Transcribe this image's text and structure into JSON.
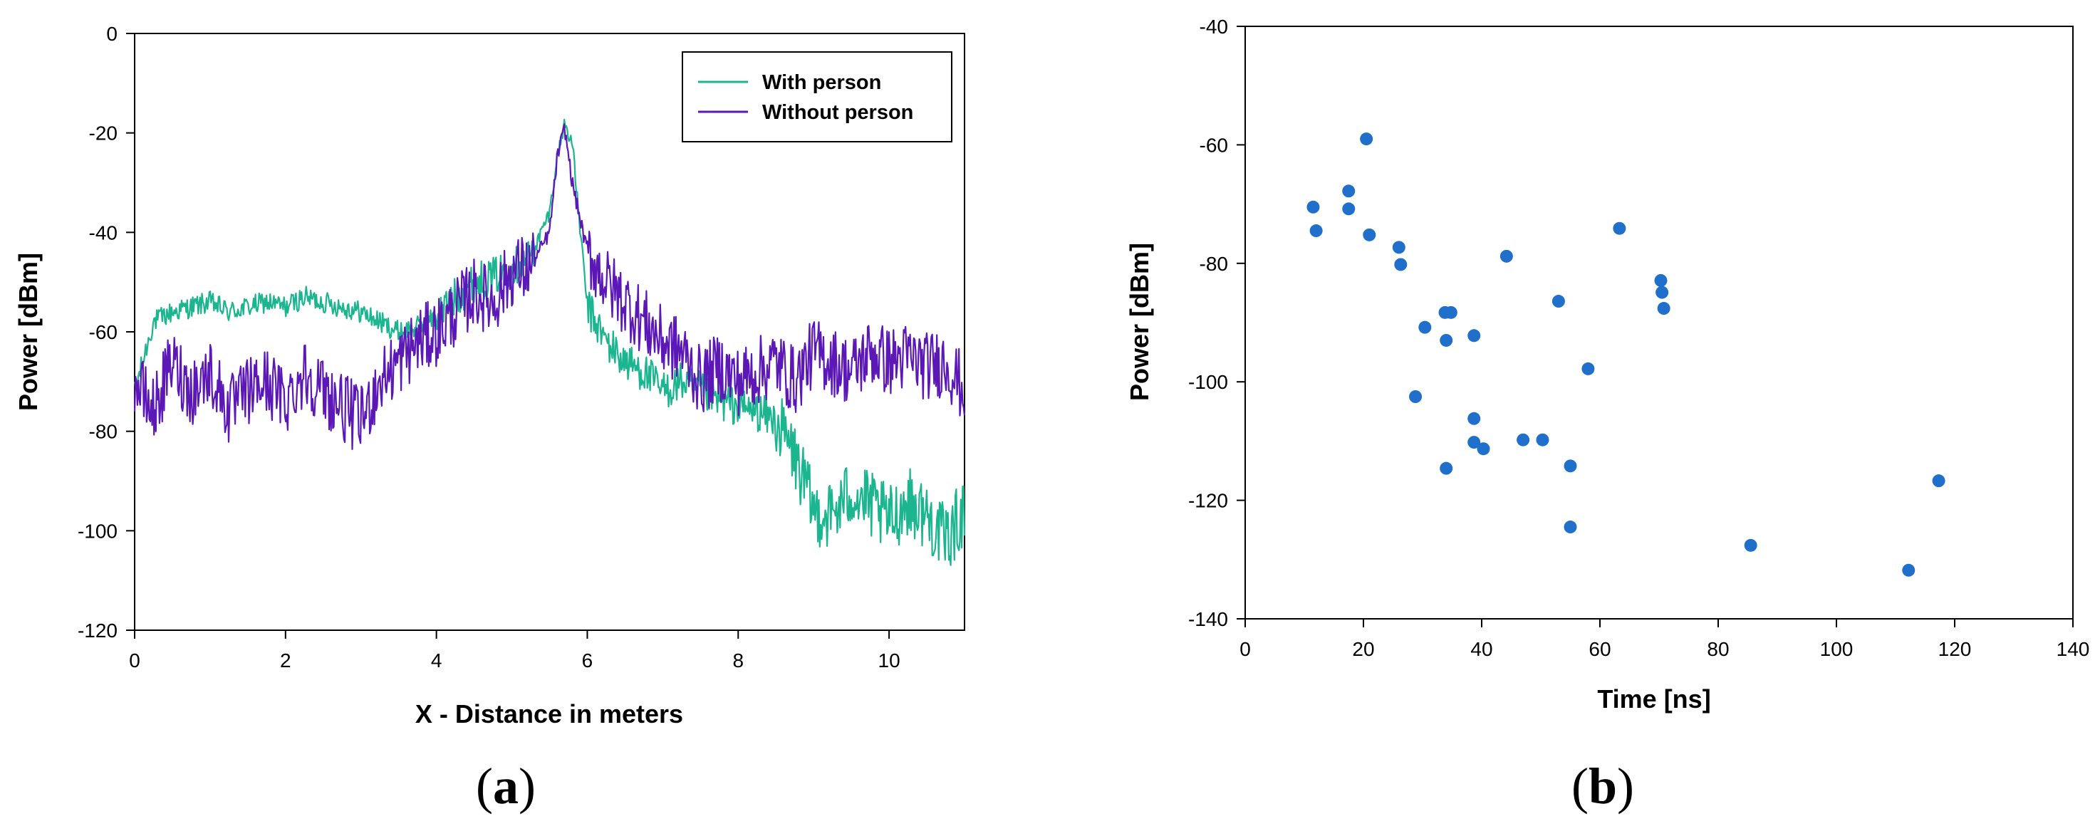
{
  "chart_data": [
    {
      "panel_label": "a",
      "type": "line",
      "title": "",
      "xlabel": "X - Distance in meters",
      "ylabel": "Power [dBm]",
      "xlim": [
        0,
        11
      ],
      "ylim": [
        -120,
        0
      ],
      "xticks": [
        0,
        2,
        4,
        6,
        8,
        10
      ],
      "yticks": [
        0,
        -20,
        -40,
        -60,
        -80,
        -100,
        -120
      ],
      "grid": false,
      "legend": "top-right",
      "series": [
        {
          "name": "With person",
          "color": "#1bb58f",
          "x": [
            0,
            0.25,
            0.5,
            0.75,
            1,
            1.25,
            1.5,
            1.75,
            2,
            2.25,
            2.5,
            2.75,
            3,
            3.25,
            3.5,
            3.75,
            4,
            4.25,
            4.5,
            4.75,
            5,
            5.25,
            5.5,
            5.6,
            5.7,
            5.8,
            6,
            6.25,
            6.5,
            6.75,
            7,
            7.25,
            7.5,
            7.75,
            8,
            8.25,
            8.5,
            8.75,
            9,
            9.25,
            9.5,
            9.75,
            10,
            10.25,
            10.5,
            10.75,
            11
          ],
          "values": [
            -72,
            -58,
            -56,
            -55,
            -54,
            -56,
            -55,
            -54,
            -55,
            -53,
            -54,
            -55,
            -56,
            -58,
            -60,
            -59,
            -57,
            -53,
            -50,
            -49,
            -47,
            -45,
            -36,
            -25,
            -18,
            -22,
            -55,
            -62,
            -66,
            -68,
            -72,
            -70,
            -72,
            -74,
            -75,
            -76,
            -78,
            -85,
            -96,
            -97,
            -92,
            -95,
            -98,
            -94,
            -97,
            -102,
            -96
          ]
        },
        {
          "name": "Without person",
          "color": "#5b18b7",
          "x": [
            0,
            0.25,
            0.5,
            0.75,
            1,
            1.25,
            1.5,
            1.75,
            2,
            2.25,
            2.5,
            2.75,
            3,
            3.25,
            3.5,
            3.75,
            4,
            4.25,
            4.5,
            4.75,
            5,
            5.25,
            5.5,
            5.6,
            5.7,
            5.8,
            6,
            6.25,
            6.5,
            6.75,
            7,
            7.25,
            7.5,
            7.75,
            8,
            8.25,
            8.5,
            8.75,
            9,
            9.25,
            9.5,
            9.75,
            10,
            10.25,
            10.5,
            10.75,
            11
          ],
          "values": [
            -70,
            -76,
            -66,
            -72,
            -68,
            -76,
            -72,
            -70,
            -74,
            -68,
            -72,
            -75,
            -78,
            -70,
            -66,
            -62,
            -60,
            -56,
            -52,
            -54,
            -48,
            -47,
            -40,
            -25,
            -19,
            -30,
            -44,
            -50,
            -54,
            -58,
            -62,
            -64,
            -70,
            -67,
            -70,
            -68,
            -66,
            -70,
            -64,
            -66,
            -68,
            -64,
            -66,
            -65,
            -67,
            -66,
            -72
          ]
        }
      ]
    },
    {
      "panel_label": "b",
      "type": "scatter",
      "title": "",
      "xlabel": "Time [ns]",
      "ylabel": "Power [dBm]",
      "xlim": [
        0,
        140
      ],
      "ylim": [
        -140,
        -40
      ],
      "xticks": [
        0,
        20,
        40,
        60,
        80,
        100,
        120,
        140
      ],
      "yticks": [
        -40,
        -60,
        -80,
        -100,
        -120,
        -140
      ],
      "grid": false,
      "color": "#1f6fcb",
      "points": [
        {
          "x": 11.5,
          "y": -70.5
        },
        {
          "x": 12,
          "y": -74.5
        },
        {
          "x": 17.5,
          "y": -67.8
        },
        {
          "x": 17.5,
          "y": -70.8
        },
        {
          "x": 20.5,
          "y": -59
        },
        {
          "x": 21,
          "y": -75.2
        },
        {
          "x": 26,
          "y": -77.3
        },
        {
          "x": 26.3,
          "y": -80.2
        },
        {
          "x": 28.8,
          "y": -102.5
        },
        {
          "x": 30.4,
          "y": -90.8
        },
        {
          "x": 33.8,
          "y": -88.3
        },
        {
          "x": 34.8,
          "y": -88.3
        },
        {
          "x": 34,
          "y": -93
        },
        {
          "x": 34,
          "y": -114.6
        },
        {
          "x": 38.7,
          "y": -92.2
        },
        {
          "x": 38.7,
          "y": -106.2
        },
        {
          "x": 38.7,
          "y": -110.2
        },
        {
          "x": 40.3,
          "y": -111.3
        },
        {
          "x": 44.2,
          "y": -78.8
        },
        {
          "x": 47,
          "y": -109.8
        },
        {
          "x": 50.3,
          "y": -109.8
        },
        {
          "x": 53,
          "y": -86.4
        },
        {
          "x": 55,
          "y": -114.2
        },
        {
          "x": 55,
          "y": -124.5
        },
        {
          "x": 58,
          "y": -97.8
        },
        {
          "x": 63.3,
          "y": -74.1
        },
        {
          "x": 70.3,
          "y": -82.9
        },
        {
          "x": 70.5,
          "y": -84.9
        },
        {
          "x": 70.8,
          "y": -87.6
        },
        {
          "x": 85.5,
          "y": -127.6
        },
        {
          "x": 112.2,
          "y": -131.8
        },
        {
          "x": 117.3,
          "y": -116.7
        }
      ]
    }
  ],
  "captions": {
    "a": {
      "open": "(",
      "letter": "a",
      "close": ")"
    },
    "b": {
      "open": "(",
      "letter": "b",
      "close": ")"
    }
  }
}
